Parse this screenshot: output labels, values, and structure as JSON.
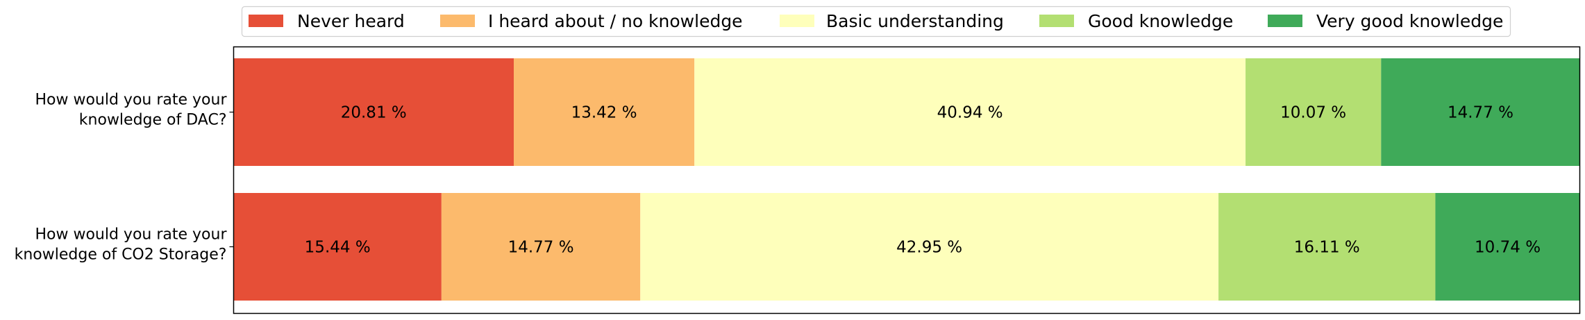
{
  "chart_data": {
    "type": "bar",
    "orientation": "horizontal",
    "stacked": true,
    "normalized": true,
    "xlim": [
      0,
      100
    ],
    "grid": false,
    "legend_position": "top",
    "categories": [
      [
        "How would you rate your",
        "knowledge of DAC?"
      ],
      [
        "How would you rate your",
        "knowledge of CO2 Storage?"
      ]
    ],
    "series": [
      {
        "name": "Never heard",
        "color": "#e64f37",
        "values": [
          20.81,
          15.44
        ],
        "labels": [
          "20.81 %",
          "15.44 %"
        ]
      },
      {
        "name": "I heard about / no knowledge",
        "color": "#fcba6c",
        "values": [
          13.42,
          14.77
        ],
        "labels": [
          "13.42 %",
          "14.77 %"
        ]
      },
      {
        "name": "Basic understanding",
        "color": "#feffbb",
        "values": [
          40.94,
          42.95
        ],
        "labels": [
          "40.94 %",
          "42.95 %"
        ]
      },
      {
        "name": "Good knowledge",
        "color": "#b3df72",
        "values": [
          10.07,
          16.11
        ],
        "labels": [
          "10.07 %",
          "16.11 %"
        ]
      },
      {
        "name": "Very good knowledge",
        "color": "#3faa59",
        "values": [
          14.77,
          10.74
        ],
        "labels": [
          "14.77 %",
          "10.74 %"
        ]
      }
    ]
  }
}
